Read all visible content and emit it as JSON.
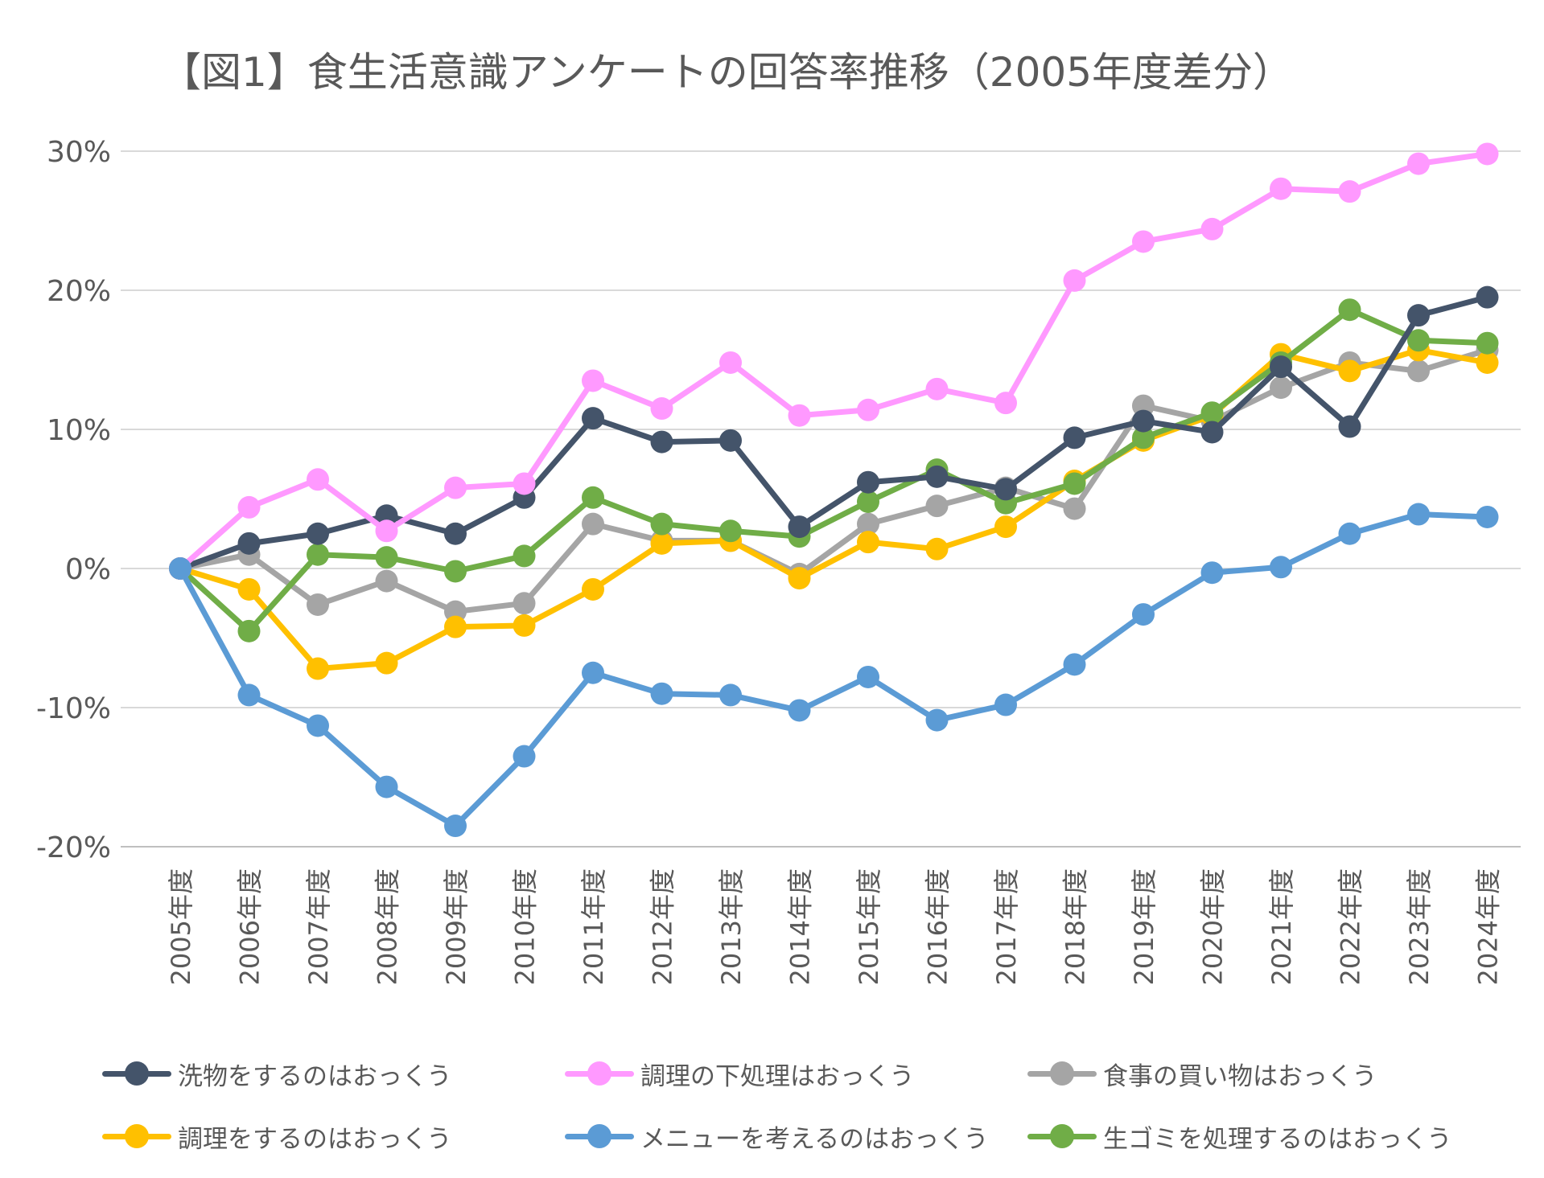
{
  "title": "【図1】食生活意識アンケートの回答率推移（2005年度差分）",
  "chart_data": {
    "type": "line",
    "title": "【図1】食生活意識アンケートの回答率推移（2005年度差分）",
    "xlabel": "",
    "ylabel": "",
    "ylim": [
      -20,
      30
    ],
    "yticks": [
      30,
      20,
      10,
      0,
      -10,
      -20
    ],
    "ytick_labels": [
      "30%",
      "20%",
      "10%",
      "0%",
      "-10%",
      "-20%"
    ],
    "grid": true,
    "legend_position": "bottom",
    "categories": [
      "2005年度",
      "2006年度",
      "2007年度",
      "2008年度",
      "2009年度",
      "2010年度",
      "2011年度",
      "2012年度",
      "2013年度",
      "2014年度",
      "2015年度",
      "2016年度",
      "2017年度",
      "2018年度",
      "2019年度",
      "2020年度",
      "2021年度",
      "2022年度",
      "2023年度",
      "2024年度"
    ],
    "series": [
      {
        "name": "食事の買い物はおっくう",
        "color": "#a5a5a5",
        "values": [
          0,
          1.0,
          -2.6,
          -0.9,
          -3.1,
          -2.5,
          3.2,
          2.0,
          2.0,
          -0.4,
          3.2,
          4.5,
          5.8,
          4.3,
          11.7,
          10.6,
          13.0,
          14.8,
          14.2,
          15.7
        ]
      },
      {
        "name": "調理をするのはおっくう",
        "color": "#ffc000",
        "values": [
          0,
          -1.5,
          -7.2,
          -6.8,
          -4.2,
          -4.1,
          -1.5,
          1.8,
          2.0,
          -0.7,
          1.9,
          1.4,
          3.0,
          6.3,
          9.2,
          11.0,
          15.4,
          14.2,
          15.7,
          14.8
        ]
      },
      {
        "name": "生ゴミを処理するのはおっくう",
        "color": "#70ad47",
        "values": [
          0,
          -4.5,
          1.0,
          0.8,
          -0.2,
          0.9,
          5.1,
          3.2,
          2.7,
          2.3,
          4.8,
          7.1,
          4.7,
          6.1,
          9.4,
          11.2,
          14.8,
          18.6,
          16.4,
          16.2
        ]
      },
      {
        "name": "洗物をするのはおっくう",
        "color": "#44546a",
        "values": [
          0,
          1.8,
          2.5,
          3.8,
          2.5,
          5.1,
          10.8,
          9.1,
          9.2,
          3.0,
          6.2,
          6.6,
          5.7,
          9.4,
          10.6,
          9.8,
          14.5,
          10.2,
          18.2,
          19.5
        ]
      },
      {
        "name": "調理の下処理はおっくう",
        "color": "#ff99ff",
        "values": [
          0,
          4.4,
          6.4,
          2.7,
          5.8,
          6.1,
          13.5,
          11.5,
          14.8,
          11.0,
          11.4,
          12.9,
          11.9,
          20.7,
          23.5,
          24.4,
          27.3,
          27.1,
          29.1,
          29.8
        ]
      },
      {
        "name": "メニューを考えるのはおっくう",
        "color": "#5b9bd5",
        "values": [
          0,
          -9.1,
          -11.3,
          -15.7,
          -18.5,
          -13.5,
          -7.5,
          -9.0,
          -9.1,
          -10.2,
          -7.8,
          -10.9,
          -9.8,
          -6.9,
          -3.3,
          -0.3,
          0.1,
          2.5,
          3.9,
          3.7
        ]
      }
    ]
  },
  "legend": [
    {
      "label": "洗物をするのはおっくう",
      "color": "#44546a"
    },
    {
      "label": "調理の下処理はおっくう",
      "color": "#ff99ff"
    },
    {
      "label": "食事の買い物はおっくう",
      "color": "#a5a5a5"
    },
    {
      "label": "調理をするのはおっくう",
      "color": "#ffc000"
    },
    {
      "label": "メニューを考えるのはおっくう",
      "color": "#5b9bd5"
    },
    {
      "label": "生ゴミを処理するのはおっくう",
      "color": "#70ad47"
    }
  ]
}
